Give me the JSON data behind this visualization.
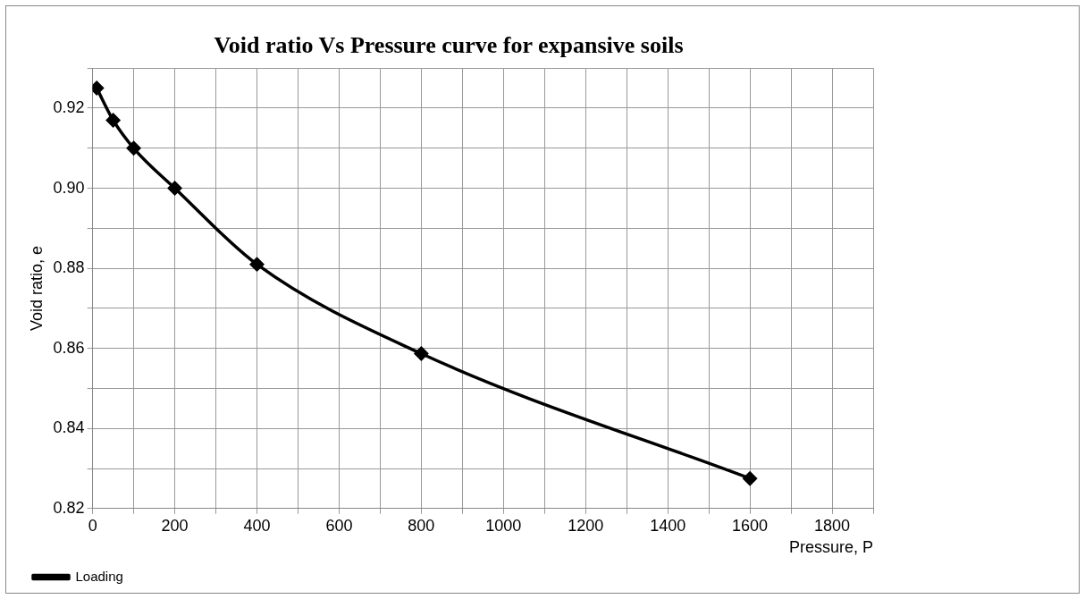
{
  "chart_data": {
    "type": "line",
    "title": "Void ratio Vs Pressure curve for expansive soils",
    "xlabel": "Pressure, P",
    "ylabel": "Void ratio, e",
    "x": [
      10,
      50,
      100,
      200,
      400,
      800,
      1600
    ],
    "series": [
      {
        "name": "Loading",
        "color": "#000000",
        "values": [
          0.925,
          0.917,
          0.91,
          0.9,
          0.881,
          0.8587,
          0.8275
        ]
      }
    ],
    "xlim": [
      0,
      1900
    ],
    "xticks": [
      0,
      {
        "value": 100,
        "label": null
      },
      200,
      {
        "value": 300,
        "label": null
      },
      400,
      {
        "value": 500,
        "label": null
      },
      600,
      {
        "value": 700,
        "label": null
      },
      800,
      {
        "value": 900,
        "label": null
      },
      1000,
      {
        "value": 1100,
        "label": null
      },
      1200,
      {
        "value": 1300,
        "label": null
      },
      1400,
      {
        "value": 1500,
        "label": null
      },
      1600,
      {
        "value": 1700,
        "label": null
      },
      1800,
      {
        "value": 1900,
        "label": null
      }
    ],
    "ylim": [
      0.82,
      0.93
    ],
    "yticks": [
      {
        "value": 0.82,
        "label": "0.82"
      },
      {
        "value": 0.83,
        "label": null
      },
      {
        "value": 0.84,
        "label": "0.84"
      },
      {
        "value": 0.85,
        "label": null
      },
      {
        "value": 0.86,
        "label": "0.86"
      },
      {
        "value": 0.87,
        "label": null
      },
      {
        "value": 0.88,
        "label": "0.88"
      },
      {
        "value": 0.89,
        "label": null
      },
      {
        "value": 0.9,
        "label": "0.90"
      },
      {
        "value": 0.91,
        "label": null
      },
      {
        "value": 0.92,
        "label": "0.92"
      },
      {
        "value": 0.93,
        "label": null
      }
    ],
    "grid": true,
    "legend": "bottom",
    "marker": "diamond",
    "line_style": "solid"
  }
}
